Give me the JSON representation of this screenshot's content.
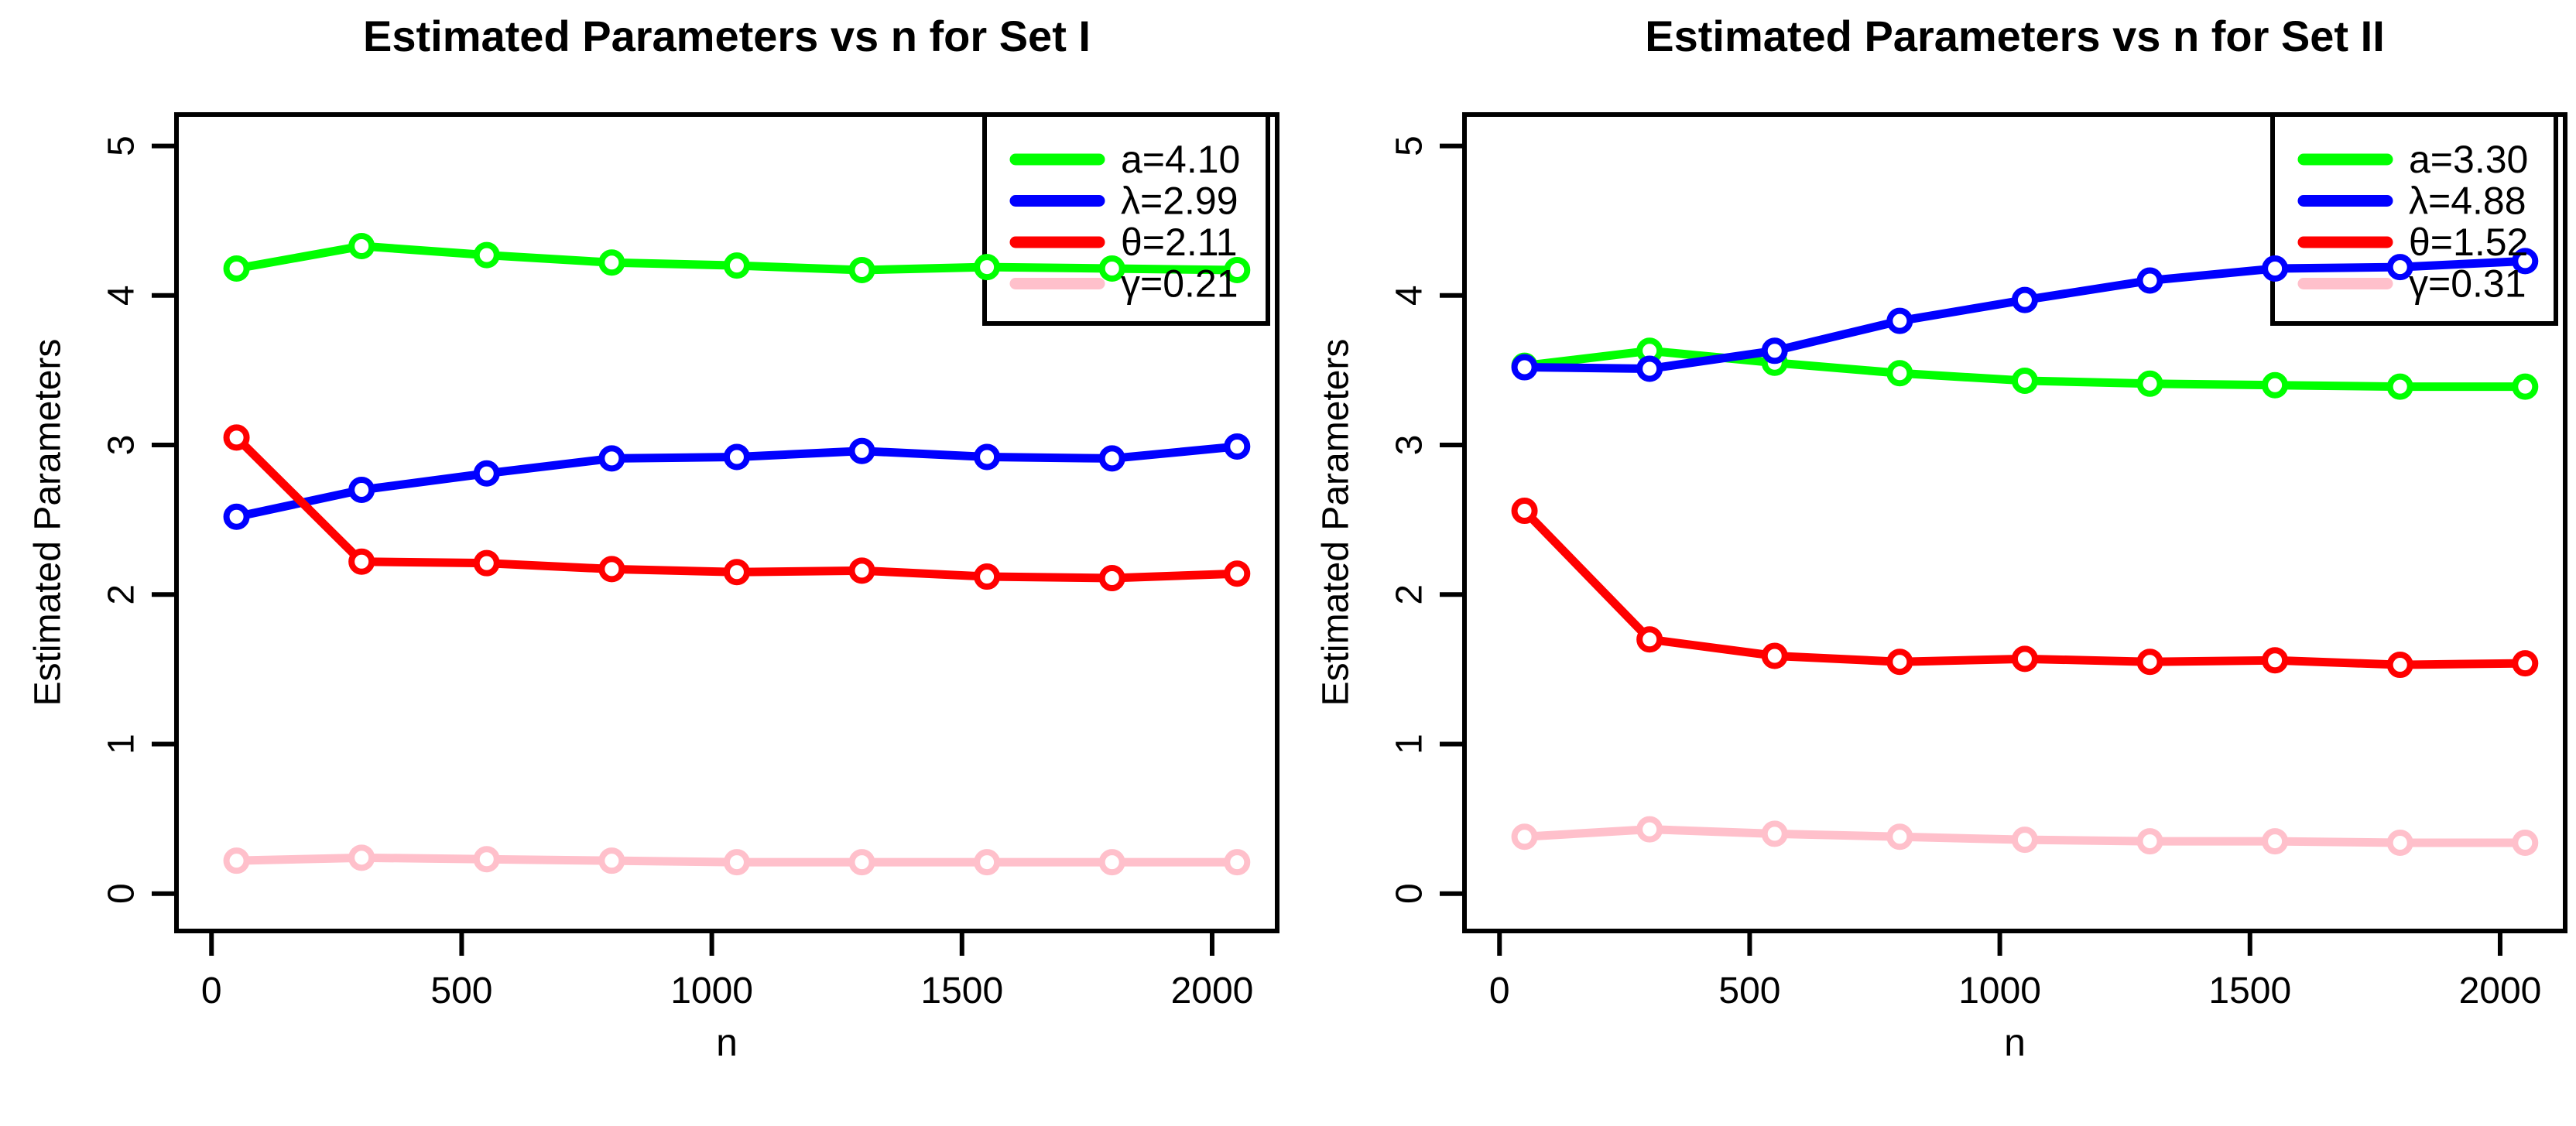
{
  "figure": {
    "background": "#ffffff",
    "axis_color": "#000000",
    "marker_style": "open-circle",
    "legend_position": "top-right"
  },
  "charts": [
    {
      "type": "line",
      "title": "Estimated Parameters vs n for Set I",
      "xlabel": "n",
      "ylabel": "Estimated Parameters",
      "x_ticks": [
        "0",
        "500",
        "1000",
        "1500",
        "2000"
      ],
      "x_tick_values": [
        0,
        500,
        1000,
        1500,
        2000
      ],
      "y_ticks": [
        "0",
        "1",
        "2",
        "3",
        "4",
        "5"
      ],
      "y_tick_values": [
        0,
        1,
        2,
        3,
        4,
        5
      ],
      "xlim": [
        -70,
        2130
      ],
      "ylim": [
        -0.25,
        5.21
      ],
      "grid": false,
      "x": [
        50,
        300,
        550,
        800,
        1050,
        1300,
        1550,
        1800,
        2050
      ],
      "series": [
        {
          "name": "a=4.10",
          "color": "#00ff00",
          "values": [
            4.18,
            4.33,
            4.27,
            4.22,
            4.2,
            4.17,
            4.19,
            4.18,
            4.17
          ]
        },
        {
          "name": "λ=2.99",
          "color": "#0000ff",
          "values": [
            2.52,
            2.7,
            2.81,
            2.91,
            2.92,
            2.96,
            2.92,
            2.91,
            2.99
          ]
        },
        {
          "name": "θ=2.11",
          "color": "#ff0000",
          "values": [
            3.05,
            2.22,
            2.21,
            2.17,
            2.15,
            2.16,
            2.12,
            2.11,
            2.14
          ]
        },
        {
          "name": "γ=0.21",
          "color": "#ffc0cb",
          "values": [
            0.22,
            0.24,
            0.23,
            0.22,
            0.21,
            0.21,
            0.21,
            0.21,
            0.21
          ]
        }
      ]
    },
    {
      "type": "line",
      "title": "Estimated Parameters vs n for Set II",
      "xlabel": "n",
      "ylabel": "Estimated Parameters",
      "x_ticks": [
        "0",
        "500",
        "1000",
        "1500",
        "2000"
      ],
      "x_tick_values": [
        0,
        500,
        1000,
        1500,
        2000
      ],
      "y_ticks": [
        "0",
        "1",
        "2",
        "3",
        "4",
        "5"
      ],
      "y_tick_values": [
        0,
        1,
        2,
        3,
        4,
        5
      ],
      "xlim": [
        -70,
        2130
      ],
      "ylim": [
        -0.25,
        5.21
      ],
      "grid": false,
      "x": [
        50,
        300,
        550,
        800,
        1050,
        1300,
        1550,
        1800,
        2050
      ],
      "series": [
        {
          "name": "a=3.30",
          "color": "#00ff00",
          "values": [
            3.53,
            3.63,
            3.55,
            3.48,
            3.43,
            3.41,
            3.4,
            3.39,
            3.39
          ]
        },
        {
          "name": "λ=4.88",
          "color": "#0000ff",
          "values": [
            3.52,
            3.51,
            3.63,
            3.83,
            3.97,
            4.1,
            4.18,
            4.19,
            4.23
          ]
        },
        {
          "name": "θ=1.52",
          "color": "#ff0000",
          "values": [
            2.56,
            1.7,
            1.59,
            1.55,
            1.57,
            1.55,
            1.56,
            1.53,
            1.54
          ]
        },
        {
          "name": "γ=0.31",
          "color": "#ffc0cb",
          "values": [
            0.38,
            0.43,
            0.4,
            0.38,
            0.36,
            0.35,
            0.35,
            0.34,
            0.34
          ]
        }
      ]
    }
  ]
}
